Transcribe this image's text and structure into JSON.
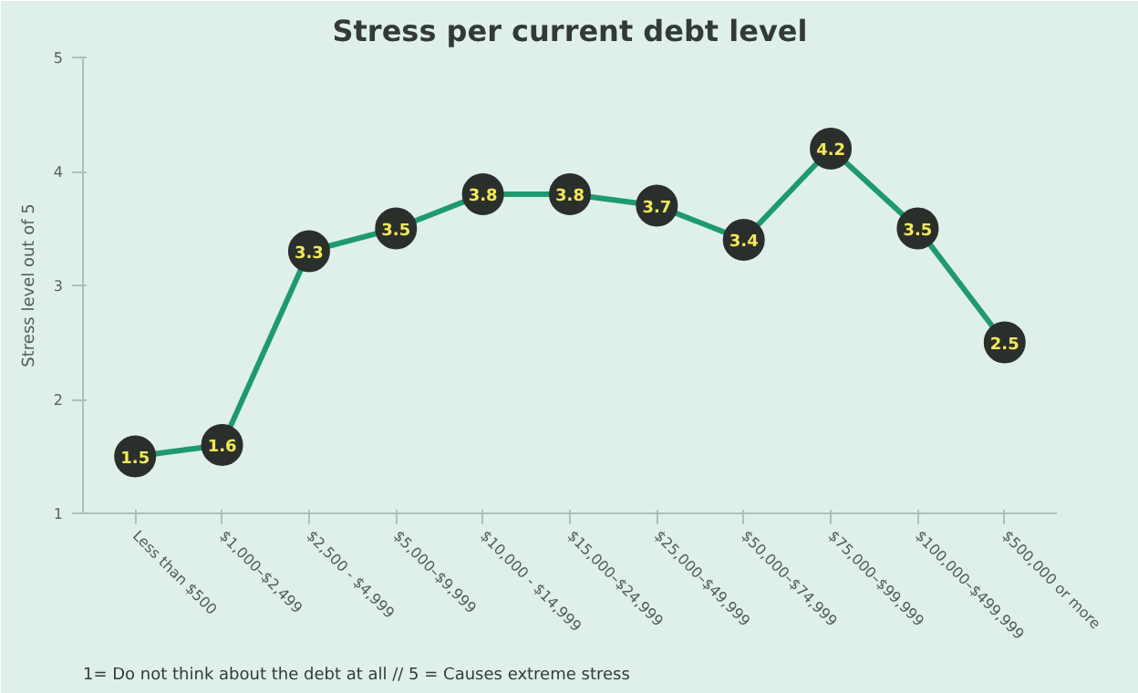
{
  "chart_data": {
    "type": "line",
    "title": "Stress per current debt level",
    "ylabel": "Stress level out of 5",
    "categories": [
      "Less than $500",
      "$1,000–$2,499",
      "$2,500 - $4,999",
      "$5,000–$9,999",
      "$10,000 - $14,999",
      "$15,000–$24,999",
      "$25,000–$49,999",
      "$50,000–$74,999",
      "$75,000–$99,999",
      "$100,000–$499,999",
      "$500,000 or more"
    ],
    "series": [
      {
        "color": "#1f9a6e",
        "values": [
          1.5,
          1.6,
          3.3,
          3.5,
          3.8,
          3.8,
          3.7,
          3.4,
          4.2,
          3.5,
          2.5
        ]
      }
    ],
    "ylim": [
      1,
      5
    ],
    "yticks": [
      1,
      2,
      3,
      4,
      5
    ],
    "grid": false,
    "marker": "circle",
    "line_style": "solid",
    "data_labels": true,
    "annotations": [
      "1= Do not think about the debt at all // 5 = Causes extreme stress"
    ]
  }
}
